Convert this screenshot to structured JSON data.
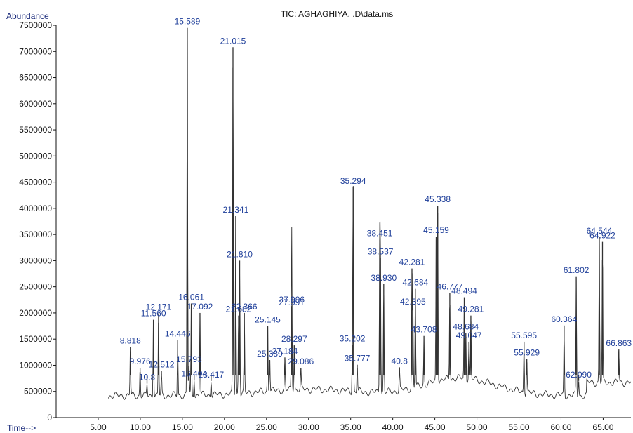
{
  "chart_data": {
    "type": "line",
    "title": "TIC: AGHAGHIYA. .D\\data.ms",
    "ylabel": "Abundance",
    "xlabel": "Time-->",
    "xlim": [
      0,
      68.3
    ],
    "ylim": [
      0,
      7500000
    ],
    "x_ticks": [
      5,
      10,
      15,
      20,
      25,
      30,
      35,
      40,
      45,
      50,
      55,
      60,
      65
    ],
    "x_tick_labels": [
      "5.00",
      "10.00",
      "15.00",
      "20.00",
      "25.00",
      "30.00",
      "35.00",
      "40.00",
      "45.00",
      "50.00",
      "55.00",
      "60.00",
      "65.00"
    ],
    "y_ticks": [
      0,
      500000,
      1000000,
      1500000,
      2000000,
      2500000,
      3000000,
      3500000,
      4000000,
      4500000,
      5000000,
      5500000,
      6000000,
      6500000,
      7000000,
      7500000
    ],
    "y_tick_labels": [
      "0",
      "500000",
      "1000000",
      "1500000",
      "2000000",
      "2500000",
      "3000000",
      "3500000",
      "4000000",
      "4500000",
      "5000000",
      "5500000",
      "6000000",
      "6500000",
      "7000000",
      "7500000"
    ],
    "grid": false,
    "peaks": [
      {
        "label": "8.818",
        "x": 8.818,
        "y": 1350000
      },
      {
        "label": "9.976",
        "x": 9.976,
        "y": 950000
      },
      {
        "label": "10.8",
        "x": 10.8,
        "y": 650000
      },
      {
        "label": "11.560",
        "x": 11.56,
        "y": 1870000
      },
      {
        "label": "12.171",
        "x": 12.171,
        "y": 1990000
      },
      {
        "label": "12.512",
        "x": 12.512,
        "y": 890000
      },
      {
        "label": "14.446",
        "x": 14.446,
        "y": 1480000
      },
      {
        "label": "15.589",
        "x": 15.589,
        "y": 7450000
      },
      {
        "label": "15.793",
        "x": 15.793,
        "y": 990000
      },
      {
        "label": "16.061",
        "x": 16.061,
        "y": 2180000
      },
      {
        "label": "16.404",
        "x": 16.404,
        "y": 720000
      },
      {
        "label": "17.092",
        "x": 17.092,
        "y": 2000000
      },
      {
        "label": "18.417",
        "x": 18.417,
        "y": 700000
      },
      {
        "label": "21.015",
        "x": 21.015,
        "y": 7080000
      },
      {
        "label": "21.341",
        "x": 21.341,
        "y": 3850000
      },
      {
        "label": "21.682",
        "x": 21.682,
        "y": 1950000
      },
      {
        "label": "21.810",
        "x": 21.81,
        "y": 3000000
      },
      {
        "label": "22.366",
        "x": 22.366,
        "y": 2000000
      },
      {
        "label": "25.145",
        "x": 25.145,
        "y": 1750000
      },
      {
        "label": "25.389",
        "x": 25.389,
        "y": 1100000
      },
      {
        "label": "27.184",
        "x": 27.184,
        "y": 1150000
      },
      {
        "label": "27.996",
        "x": 27.996,
        "y": 2130000
      },
      {
        "label": "27.991",
        "x": 27.991,
        "y": 2080000
      },
      {
        "label": "28.297",
        "x": 28.297,
        "y": 1380000
      },
      {
        "label": "29.086",
        "x": 29.086,
        "y": 950000
      },
      {
        "label": "35.294",
        "x": 35.294,
        "y": 4400000
      },
      {
        "label": "35.202",
        "x": 35.202,
        "y": 1390000
      },
      {
        "label": "35.777",
        "x": 35.777,
        "y": 1010000
      },
      {
        "label": "38.451",
        "x": 38.451,
        "y": 3400000
      },
      {
        "label": "38.537",
        "x": 38.537,
        "y": 3050000
      },
      {
        "label": "38.930",
        "x": 38.93,
        "y": 2550000
      },
      {
        "label": "40.8",
        "x": 40.8,
        "y": 960000
      },
      {
        "label": "42.281",
        "x": 42.281,
        "y": 2850000
      },
      {
        "label": "42.684",
        "x": 42.684,
        "y": 2460000
      },
      {
        "label": "42.395",
        "x": 42.395,
        "y": 2090000
      },
      {
        "label": "43.708",
        "x": 43.708,
        "y": 1560000
      },
      {
        "label": "45.338",
        "x": 45.338,
        "y": 4050000
      },
      {
        "label": "45.159",
        "x": 45.159,
        "y": 3460000
      },
      {
        "label": "46.777",
        "x": 46.777,
        "y": 2380000
      },
      {
        "label": "48.494",
        "x": 48.494,
        "y": 2300000
      },
      {
        "label": "49.281",
        "x": 49.281,
        "y": 1950000
      },
      {
        "label": "48.684",
        "x": 48.684,
        "y": 1620000
      },
      {
        "label": "49.047",
        "x": 49.047,
        "y": 1450000
      },
      {
        "label": "55.595",
        "x": 55.595,
        "y": 1450000
      },
      {
        "label": "55.929",
        "x": 55.929,
        "y": 1120000
      },
      {
        "label": "60.364",
        "x": 60.364,
        "y": 1760000
      },
      {
        "label": "61.802",
        "x": 61.802,
        "y": 2700000
      },
      {
        "label": "62.090",
        "x": 62.09,
        "y": 700000
      },
      {
        "label": "64.544",
        "x": 64.544,
        "y": 3450000
      },
      {
        "label": "64.922",
        "x": 64.922,
        "y": 3360000
      },
      {
        "label": "66.863",
        "x": 66.863,
        "y": 1300000
      }
    ]
  }
}
